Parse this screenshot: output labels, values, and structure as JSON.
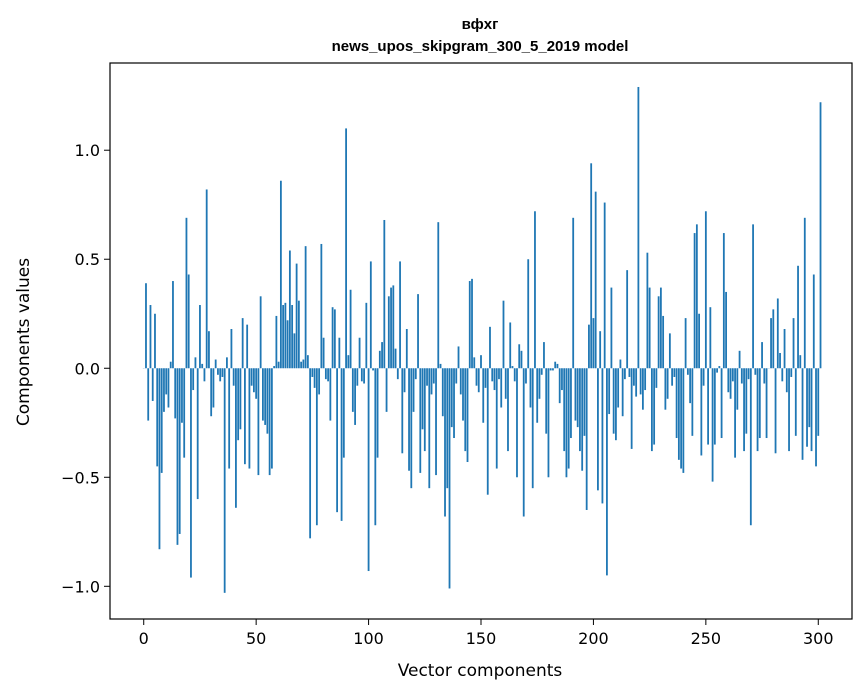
{
  "chart_data": {
    "type": "bar",
    "title": "вфхг",
    "subtitle": "news_upos_skipgram_300_5_2019 model",
    "xlabel": "Vector components",
    "ylabel": "Components values",
    "xlim": [
      -15,
      315
    ],
    "ylim": [
      -1.15,
      1.4
    ],
    "xticks": [
      0,
      50,
      100,
      150,
      200,
      250,
      300
    ],
    "yticks": [
      -1.0,
      -0.5,
      0.0,
      0.5,
      1.0
    ],
    "xtick_labels": [
      "0",
      "50",
      "100",
      "150",
      "200",
      "250",
      "300"
    ],
    "ytick_labels": [
      "−1.0",
      "−0.5",
      "0.0",
      "0.5",
      "1.0"
    ],
    "bar_color": "#1f77b4",
    "values": [
      0.0,
      0.39,
      -0.24,
      0.29,
      -0.15,
      0.25,
      -0.45,
      -0.83,
      -0.48,
      -0.2,
      -0.12,
      -0.18,
      0.03,
      0.4,
      -0.23,
      -0.81,
      -0.76,
      -0.25,
      -0.41,
      0.69,
      0.43,
      -0.96,
      -0.1,
      0.05,
      -0.6,
      0.29,
      0.02,
      -0.06,
      0.82,
      0.17,
      -0.22,
      -0.18,
      0.04,
      -0.03,
      -0.06,
      -0.04,
      -1.03,
      0.05,
      -0.46,
      0.18,
      -0.08,
      -0.64,
      -0.33,
      -0.28,
      0.23,
      -0.44,
      0.2,
      -0.46,
      -0.08,
      -0.11,
      -0.14,
      -0.49,
      0.33,
      -0.24,
      -0.26,
      -0.3,
      -0.49,
      -0.46,
      0.01,
      0.24,
      0.03,
      0.86,
      0.29,
      0.3,
      0.22,
      0.54,
      0.29,
      0.16,
      0.48,
      0.31,
      0.03,
      0.04,
      0.56,
      0.06,
      -0.78,
      -0.04,
      -0.09,
      -0.72,
      -0.12,
      0.57,
      0.14,
      -0.05,
      -0.06,
      -0.24,
      0.28,
      0.27,
      -0.66,
      0.14,
      -0.7,
      -0.41,
      1.1,
      0.06,
      0.36,
      -0.2,
      -0.26,
      -0.08,
      0.14,
      -0.06,
      -0.07,
      0.3,
      -0.93,
      0.49,
      -0.01,
      -0.72,
      -0.41,
      0.08,
      0.12,
      0.68,
      -0.2,
      0.33,
      0.37,
      0.38,
      0.09,
      -0.05,
      0.49,
      -0.39,
      -0.11,
      0.18,
      -0.47,
      -0.55,
      -0.2,
      -0.05,
      0.34,
      -0.48,
      -0.28,
      -0.38,
      -0.08,
      -0.55,
      -0.12,
      -0.07,
      -0.49,
      0.67,
      0.02,
      -0.22,
      -0.68,
      -0.55,
      -1.01,
      -0.27,
      -0.32,
      -0.07,
      0.1,
      -0.12,
      -0.24,
      -0.38,
      -0.43,
      0.4,
      0.41,
      0.05,
      -0.08,
      -0.11,
      0.06,
      -0.25,
      -0.09,
      -0.58,
      0.19,
      -0.06,
      -0.1,
      -0.46,
      -0.05,
      -0.18,
      0.31,
      -0.14,
      -0.38,
      0.21,
      0.01,
      -0.06,
      -0.5,
      0.11,
      0.08,
      -0.68,
      -0.07,
      0.5,
      -0.18,
      -0.55,
      0.72,
      -0.25,
      -0.14,
      -0.03,
      0.12,
      -0.3,
      -0.5,
      -0.01,
      -0.01,
      0.03,
      0.02,
      -0.16,
      -0.1,
      -0.38,
      -0.5,
      -0.46,
      -0.32,
      0.69,
      -0.24,
      -0.27,
      -0.38,
      -0.47,
      -0.31,
      -0.65,
      0.2,
      0.94,
      0.23,
      0.81,
      -0.56,
      0.17,
      -0.62,
      0.76,
      -0.95,
      -0.21,
      0.37,
      -0.3,
      -0.33,
      -0.18,
      0.04,
      -0.22,
      -0.05,
      0.45,
      -0.04,
      -0.37,
      -0.08,
      -0.13,
      1.29,
      -0.12,
      -0.19,
      -0.1,
      0.53,
      0.37,
      -0.38,
      -0.35,
      -0.09,
      0.33,
      0.37,
      0.24,
      -0.19,
      -0.14,
      0.16,
      -0.08,
      -0.04,
      -0.32,
      -0.42,
      -0.46,
      -0.48,
      0.23,
      -0.03,
      -0.16,
      -0.31,
      0.62,
      0.66,
      0.25,
      -0.4,
      -0.08,
      0.72,
      -0.35,
      0.28,
      -0.52,
      -0.35,
      -0.02,
      0.01,
      -0.32,
      0.62,
      0.35,
      -0.11,
      -0.14,
      -0.06,
      -0.41,
      -0.19,
      0.08,
      -0.07,
      -0.38,
      -0.3,
      -0.05,
      -0.72,
      0.66,
      -0.03,
      -0.38,
      -0.32,
      0.12,
      -0.07,
      -0.32,
      0.0,
      0.23,
      0.27,
      -0.39,
      0.32,
      0.07,
      -0.06,
      0.18,
      -0.11,
      -0.38,
      -0.04,
      0.23,
      -0.31,
      0.47,
      0.06,
      -0.42,
      0.69,
      -0.36,
      -0.27,
      -0.38,
      0.43,
      -0.45,
      -0.31,
      1.22
    ]
  }
}
